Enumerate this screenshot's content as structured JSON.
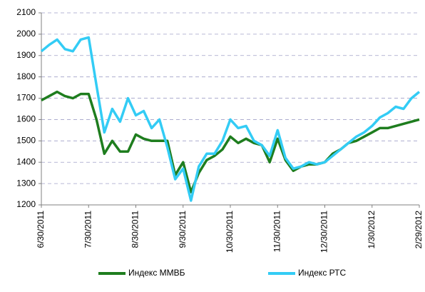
{
  "chart_data": {
    "type": "line",
    "categories": [
      "6/30/2011",
      null,
      null,
      null,
      null,
      null,
      "7/30/2011",
      null,
      null,
      null,
      null,
      null,
      "8/30/2011",
      null,
      null,
      null,
      null,
      null,
      "9/30/2011",
      null,
      null,
      null,
      null,
      null,
      "10/30/2011",
      null,
      null,
      null,
      null,
      null,
      "11/30/2011",
      null,
      null,
      null,
      null,
      null,
      "12/30/2011",
      null,
      null,
      null,
      null,
      null,
      "1/30/2012",
      null,
      null,
      null,
      null,
      null,
      "2/29/2012"
    ],
    "series": [
      {
        "name": "Индекс ММВБ",
        "color": "#1e7d1e",
        "values": [
          1690,
          1710,
          1730,
          1710,
          1700,
          1720,
          1720,
          1600,
          1440,
          1500,
          1450,
          1450,
          1530,
          1510,
          1500,
          1500,
          1500,
          1340,
          1400,
          1260,
          1350,
          1410,
          1430,
          1460,
          1520,
          1490,
          1510,
          1490,
          1480,
          1400,
          1510,
          1410,
          1360,
          1380,
          1390,
          1390,
          1400,
          1440,
          1460,
          1490,
          1500,
          1520,
          1540,
          1560,
          1560,
          1570,
          1580,
          1590,
          1600
        ]
      },
      {
        "name": "Индекс РТС",
        "color": "#33ccf5",
        "values": [
          1920,
          1950,
          1975,
          1930,
          1920,
          1975,
          1985,
          1760,
          1540,
          1650,
          1590,
          1700,
          1620,
          1640,
          1560,
          1600,
          1470,
          1320,
          1370,
          1220,
          1380,
          1440,
          1440,
          1500,
          1600,
          1560,
          1570,
          1500,
          1480,
          1430,
          1550,
          1420,
          1370,
          1380,
          1400,
          1390,
          1400,
          1430,
          1460,
          1490,
          1520,
          1540,
          1570,
          1610,
          1630,
          1660,
          1650,
          1700,
          1730
        ]
      }
    ],
    "ylim": [
      1200,
      2100
    ],
    "yticks": [
      1200,
      1300,
      1400,
      1500,
      1600,
      1700,
      1800,
      1900,
      2000,
      2100
    ],
    "grid": true,
    "legend": "bottom"
  }
}
